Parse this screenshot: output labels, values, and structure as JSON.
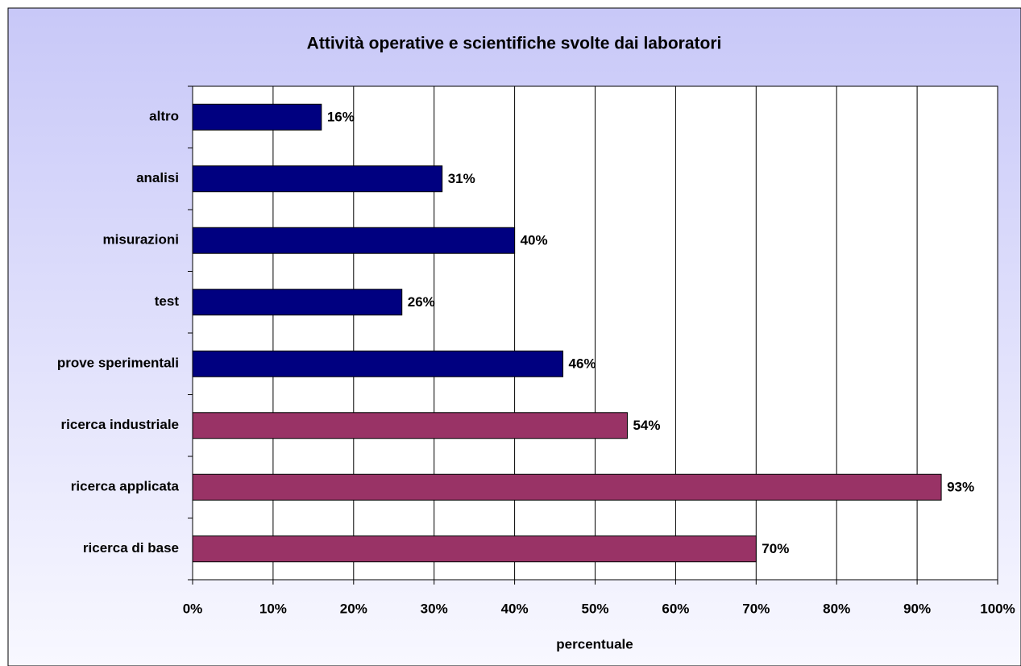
{
  "chart_data": {
    "type": "barh",
    "title": "Attività operative e scientifiche svolte dai laboratori",
    "xlabel": "percentuale",
    "categories": [
      "altro",
      "analisi",
      "misurazioni",
      "test",
      "prove sperimentali",
      "ricerca industriale",
      "ricerca applicata",
      "ricerca di base"
    ],
    "values": [
      16,
      31,
      40,
      26,
      46,
      54,
      93,
      70
    ],
    "value_labels": [
      "16%",
      "31%",
      "40%",
      "26%",
      "46%",
      "54%",
      "93%",
      "70%"
    ],
    "colors": [
      "#000080",
      "#000080",
      "#000080",
      "#000080",
      "#000080",
      "#993366",
      "#993366",
      "#993366"
    ],
    "xlim": [
      0,
      100
    ],
    "xticks": [
      {
        "value": 0,
        "label": "0%"
      },
      {
        "value": 10,
        "label": "10%"
      },
      {
        "value": 20,
        "label": "20%"
      },
      {
        "value": 30,
        "label": "30%"
      },
      {
        "value": 40,
        "label": "40%"
      },
      {
        "value": 50,
        "label": "50%"
      },
      {
        "value": 60,
        "label": "60%"
      },
      {
        "value": 70,
        "label": "70%"
      },
      {
        "value": 80,
        "label": "80%"
      },
      {
        "value": 90,
        "label": "90%"
      },
      {
        "value": 100,
        "label": "100%"
      }
    ],
    "grid": true
  }
}
